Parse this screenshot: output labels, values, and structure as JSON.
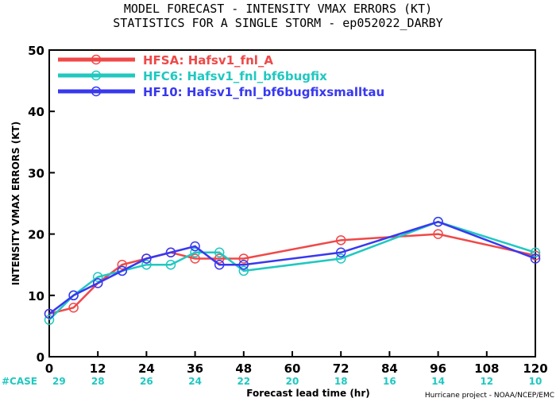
{
  "chart_data": {
    "type": "line",
    "title": "MODEL FORECAST - INTENSITY VMAX ERRORS (KT)",
    "subtitle": "STATISTICS FOR A SINGLE STORM - ep052022_DARBY",
    "xlabel": "Forecast lead time (hr)",
    "ylabel": "INTENSITY VMAX ERRORS (KT)",
    "xlim": [
      0,
      120
    ],
    "ylim": [
      0,
      50
    ],
    "xticks": [
      0,
      12,
      24,
      36,
      48,
      60,
      72,
      84,
      96,
      108,
      120
    ],
    "yticks": [
      0,
      10,
      20,
      30,
      40,
      50
    ],
    "grid": false,
    "legend_position": "top-left",
    "series": [
      {
        "name": "HFSA: Hafsv1_fnl_A",
        "color": "#f04848",
        "x": [
          0,
          6,
          12,
          18,
          24,
          30,
          36,
          42,
          48,
          72,
          96,
          120
        ],
        "y": [
          7,
          8,
          12,
          15,
          16,
          17,
          16,
          16,
          16,
          19,
          20,
          16.5
        ]
      },
      {
        "name": "HFC6: Hafsv1_fnl_bf6bugfix",
        "color": "#20c8c0",
        "x": [
          0,
          6,
          12,
          18,
          24,
          30,
          36,
          42,
          48,
          72,
          96,
          120
        ],
        "y": [
          6,
          10,
          13,
          14,
          15,
          15,
          17,
          17,
          14,
          16,
          22,
          17
        ]
      },
      {
        "name": "HF10: Hafsv1_fnl_bf6bugfixsmalltau",
        "color": "#3838f0",
        "x": [
          0,
          6,
          12,
          18,
          24,
          30,
          36,
          42,
          48,
          72,
          96,
          120
        ],
        "y": [
          7,
          10,
          12,
          14,
          16,
          17,
          18,
          15,
          15,
          17,
          22,
          16
        ]
      }
    ],
    "case_label": "#CASE",
    "case_color": "#20c8c0",
    "case_x": [
      0,
      12,
      24,
      36,
      48,
      60,
      72,
      84,
      96,
      108,
      120
    ],
    "cases": [
      "29",
      "28",
      "26",
      "24",
      "22",
      "20",
      "18",
      "16",
      "14",
      "12",
      "10"
    ],
    "credit": "Hurricane project - NOAA/NCEP/EMC"
  }
}
